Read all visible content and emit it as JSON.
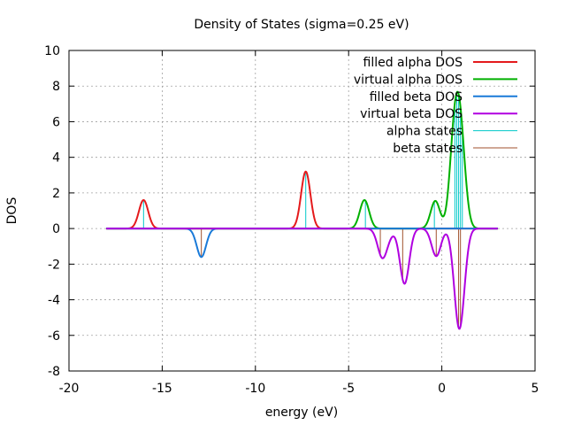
{
  "chart_data": {
    "type": "line",
    "title": "Density of States (sigma=0.25 eV)",
    "xlabel": "energy (eV)",
    "ylabel": "DOS",
    "xlim": [
      -20,
      5
    ],
    "ylim": [
      -8,
      10
    ],
    "xticks": [
      -20,
      -15,
      -10,
      -5,
      0,
      5
    ],
    "yticks": [
      -8,
      -6,
      -4,
      -2,
      0,
      2,
      4,
      6,
      8,
      10
    ],
    "grid": true,
    "legend_position": "top-right",
    "sigma": 0.25,
    "x_range": [
      -18,
      3
    ],
    "series": [
      {
        "name": "filled alpha DOS",
        "color": "#e41a1c",
        "spin": 1,
        "peaks": [
          {
            "energy": -16.0,
            "height": 1.6
          },
          {
            "energy": -7.3,
            "height": 3.2
          }
        ]
      },
      {
        "name": "virtual alpha DOS",
        "color": "#00b000",
        "spin": 1,
        "peaks": [
          {
            "energy": -4.15,
            "height": 1.6
          },
          {
            "energy": -0.35,
            "height": 1.55
          },
          {
            "energy": 0.65,
            "height": 4.3
          },
          {
            "energy": 0.95,
            "height": 4.3
          },
          {
            "energy": 1.15,
            "height": 1.2
          }
        ]
      },
      {
        "name": "filled beta DOS",
        "color": "#1a7ad8",
        "spin": -1,
        "peaks": [
          {
            "energy": -12.9,
            "height": 1.6
          }
        ]
      },
      {
        "name": "virtual beta DOS",
        "color": "#b000e0",
        "spin": -1,
        "peaks": [
          {
            "energy": -3.2,
            "height": 1.55
          },
          {
            "energy": -2.0,
            "height": 3.1
          },
          {
            "energy": -2.85,
            "height": 0.3
          },
          {
            "energy": -0.3,
            "height": 1.55
          },
          {
            "energy": 0.85,
            "height": 3.3
          },
          {
            "energy": 1.05,
            "height": 2.8
          }
        ]
      },
      {
        "name": "alpha states",
        "color": "#00c8c8",
        "type": "sticks",
        "states": [
          -16.0,
          -7.3,
          -4.1,
          -0.4,
          0.7,
          0.8,
          0.9,
          1.0,
          1.1
        ]
      },
      {
        "name": "beta states",
        "color": "#a0522d",
        "type": "sticks",
        "states": [
          -12.9,
          -3.3,
          -2.1,
          -0.3,
          0.9,
          1.0
        ]
      }
    ]
  }
}
